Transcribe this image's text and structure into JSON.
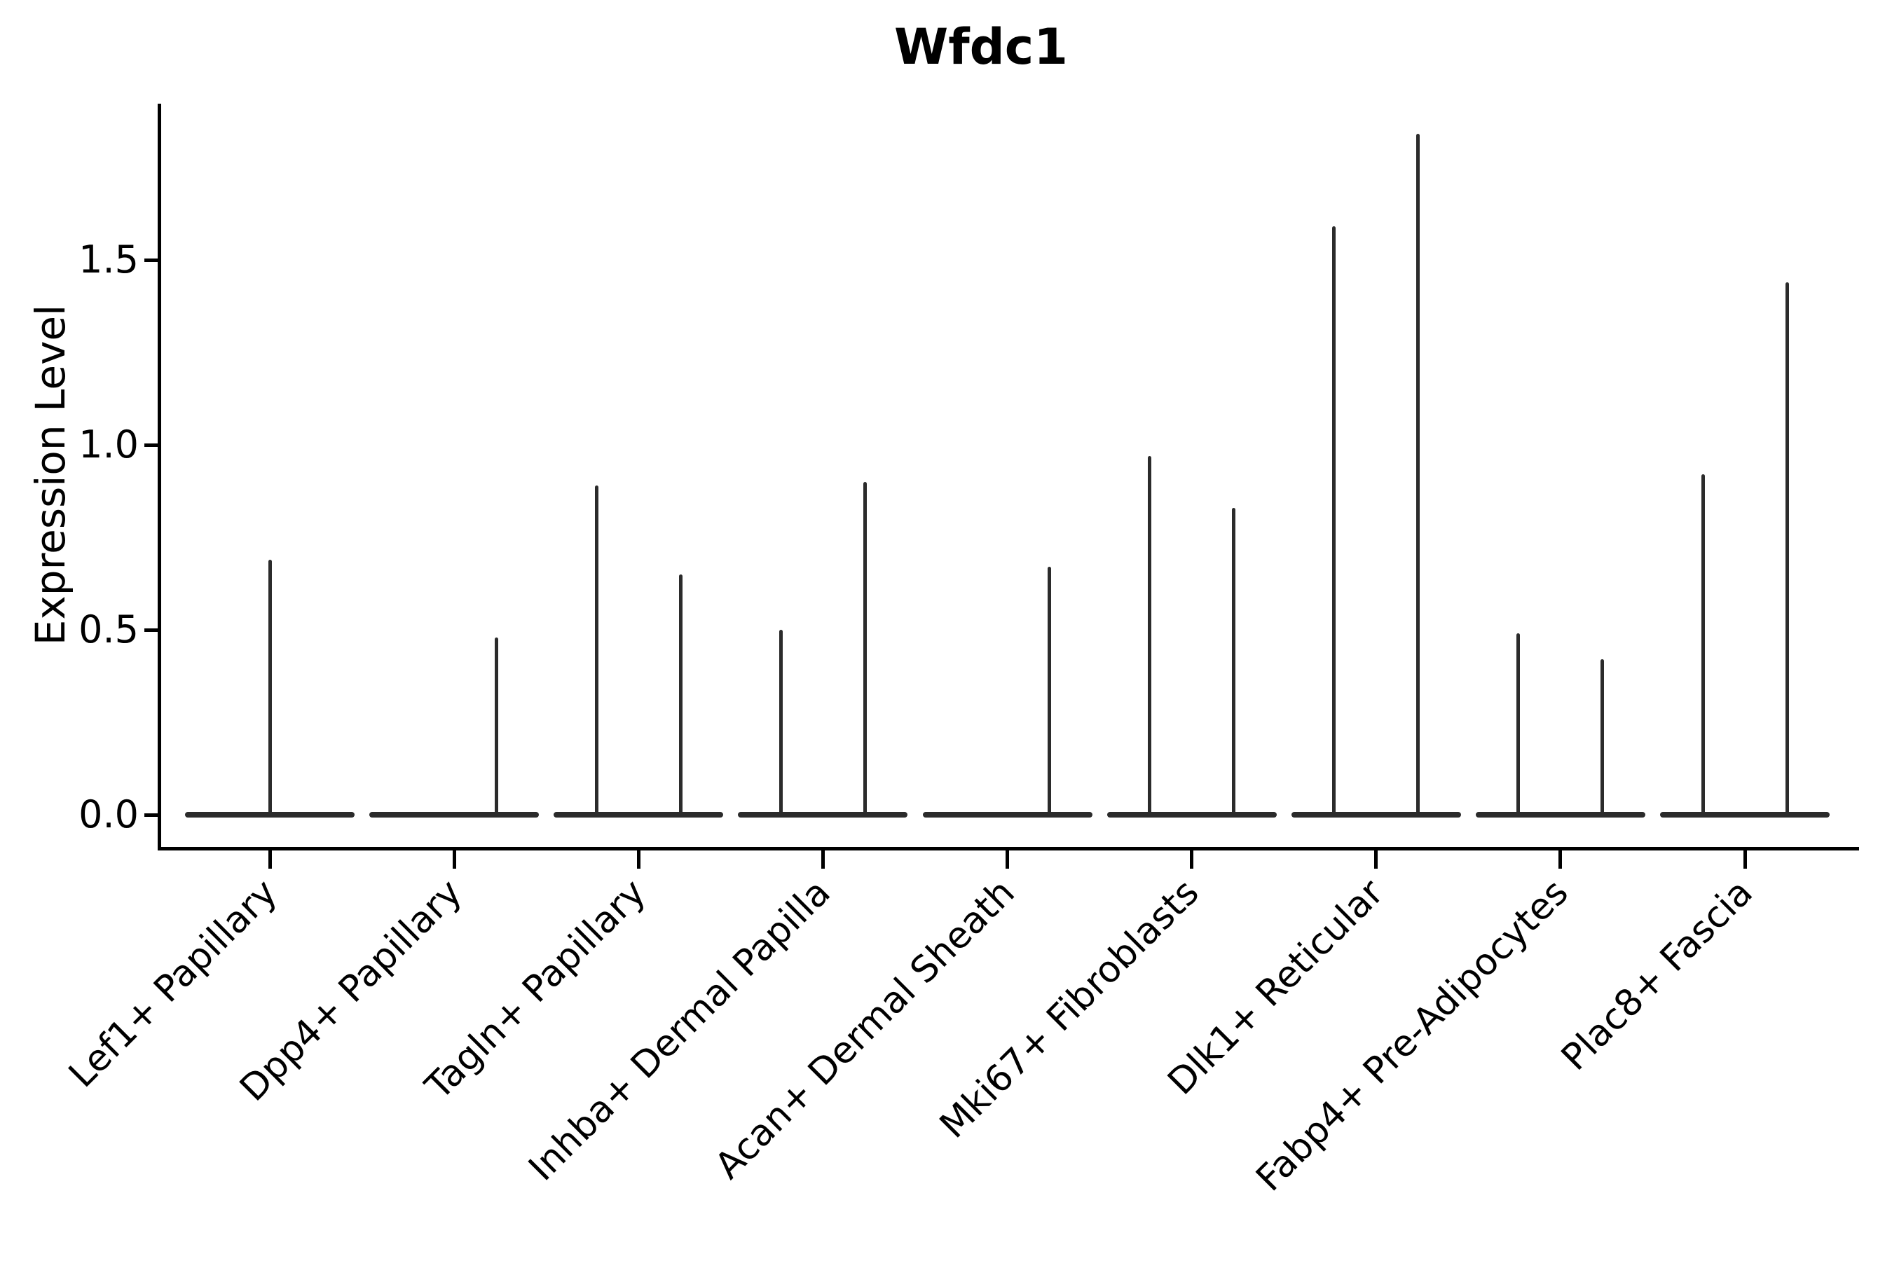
{
  "title": "Wfdc1",
  "ylabel": "Expression Level",
  "chart_data": {
    "type": "violin",
    "title": "Wfdc1",
    "xlabel": "",
    "ylabel": "Expression Level",
    "yticks": [
      0.0,
      0.5,
      1.0,
      1.5
    ],
    "ytick_labels": [
      "0.0",
      "0.5",
      "1.0",
      "1.5"
    ],
    "ylim": [
      -0.09,
      1.92
    ],
    "grid": false,
    "legend": "none",
    "line_color": "#2b2b2b",
    "axis_color": "#000000",
    "description": "Violin plot of Wfdc1 expression; each cluster shows a flat density body at 0 with thin spikes reaching the maximum expression of sparse positive cells",
    "categories": [
      "Lef1+ Papillary",
      "Dpp4+ Papillary",
      "Tagln+ Papillary",
      "Inhba+ Dermal Papilla",
      "Acan+ Dermal Sheath",
      "Mki67+ Fibroblasts",
      "Dlk1+ Reticular",
      "Fabp4+ Pre-Adipocytes",
      "Plac8+ Fascia"
    ],
    "violins": [
      {
        "category": "Lef1+ Papillary",
        "baseline": 0.0,
        "spikes": [
          {
            "pos": "center",
            "max": 0.69
          }
        ]
      },
      {
        "category": "Dpp4+ Papillary",
        "baseline": 0.0,
        "spikes": [
          {
            "pos": "right",
            "max": 0.48
          }
        ]
      },
      {
        "category": "Tagln+ Papillary",
        "baseline": 0.0,
        "spikes": [
          {
            "pos": "left",
            "max": 0.89
          },
          {
            "pos": "right",
            "max": 0.65
          }
        ]
      },
      {
        "category": "Inhba+ Dermal Papilla",
        "baseline": 0.0,
        "spikes": [
          {
            "pos": "left",
            "max": 0.5
          },
          {
            "pos": "right",
            "max": 0.9
          }
        ]
      },
      {
        "category": "Acan+ Dermal Sheath",
        "baseline": 0.0,
        "spikes": [
          {
            "pos": "right",
            "max": 0.67
          }
        ]
      },
      {
        "category": "Mki67+ Fibroblasts",
        "baseline": 0.0,
        "spikes": [
          {
            "pos": "left",
            "max": 0.97
          },
          {
            "pos": "right",
            "max": 0.83
          }
        ]
      },
      {
        "category": "Dlk1+ Reticular",
        "baseline": 0.0,
        "spikes": [
          {
            "pos": "left",
            "max": 1.59
          },
          {
            "pos": "right",
            "max": 1.84
          }
        ]
      },
      {
        "category": "Fabp4+ Pre-Adipocytes",
        "baseline": 0.0,
        "spikes": [
          {
            "pos": "left",
            "max": 0.49
          },
          {
            "pos": "right",
            "max": 0.42
          }
        ]
      },
      {
        "category": "Plac8+ Fascia",
        "baseline": 0.0,
        "spikes": [
          {
            "pos": "left",
            "max": 0.92
          },
          {
            "pos": "right",
            "max": 1.44
          }
        ]
      }
    ]
  }
}
